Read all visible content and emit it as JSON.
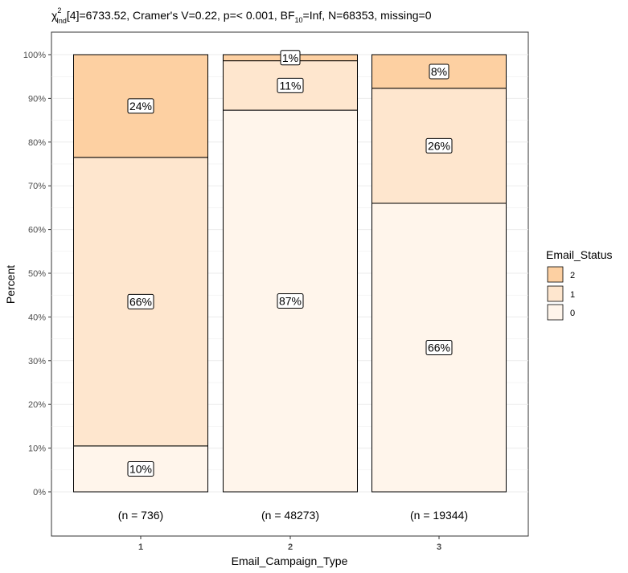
{
  "chart_data": {
    "type": "bar",
    "stacked": "percent",
    "title_parts": {
      "chi": "χ",
      "sup": "2",
      "sub": "Ind",
      "rest1": "[4]=6733.52, Cramer's V=0.22, p=< 0.001, BF",
      "bf_sub": "10",
      "rest2": "=Inf, N=68353, missing=0"
    },
    "xlabel": "Email_Campaign_Type",
    "ylabel": "Percent",
    "ylim": [
      0,
      100
    ],
    "yticks": [
      "0%",
      "10%",
      "20%",
      "30%",
      "40%",
      "50%",
      "60%",
      "70%",
      "80%",
      "90%",
      "100%"
    ],
    "categories": [
      "1",
      "2",
      "3"
    ],
    "counts": [
      "(n = 736)",
      "(n = 48273)",
      "(n = 19344)"
    ],
    "legend": {
      "title": "Email_Status",
      "placement": "right",
      "entries": [
        "2",
        "1",
        "0"
      ]
    },
    "colors": {
      "0": "#fff5eb",
      "1": "#fee6ce",
      "2": "#fdd0a2"
    },
    "series": [
      {
        "name": "0",
        "values": [
          10.5,
          87.3,
          66.0
        ],
        "labels": [
          "10%",
          "87%",
          "66%"
        ]
      },
      {
        "name": "1",
        "values": [
          66.0,
          11.3,
          26.3
        ],
        "labels": [
          "66%",
          "11%",
          "26%"
        ]
      },
      {
        "name": "2",
        "values": [
          23.5,
          1.4,
          7.7
        ],
        "labels": [
          "24%",
          "1%",
          "8%"
        ]
      }
    ]
  }
}
